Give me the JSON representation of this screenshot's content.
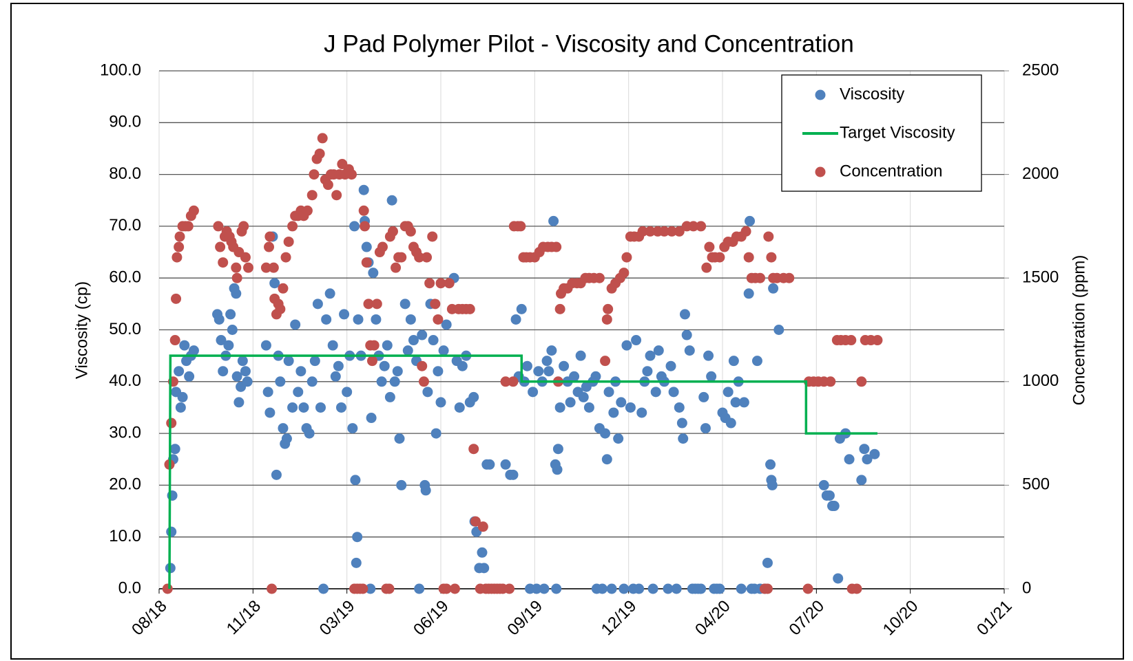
{
  "chart_data": {
    "type": "scatter",
    "title": "J Pad Polymer Pilot - Viscosity and Concentration",
    "y_label": "Viscosity (cp)",
    "y2_label": "Concentration (ppm)",
    "xlim": [
      43325,
      44225
    ],
    "xticks": [
      {
        "value": 43325,
        "label": "08/18"
      },
      {
        "value": 43425,
        "label": "11/18"
      },
      {
        "value": 43525,
        "label": "03/19"
      },
      {
        "value": 43625,
        "label": "06/19"
      },
      {
        "value": 43725,
        "label": "09/19"
      },
      {
        "value": 43825,
        "label": "12/19"
      },
      {
        "value": 43925,
        "label": "04/20"
      },
      {
        "value": 44025,
        "label": "07/20"
      },
      {
        "value": 44125,
        "label": "10/20"
      },
      {
        "value": 44225,
        "label": "01/21"
      }
    ],
    "ylim": [
      0,
      100
    ],
    "yticks": [
      {
        "value": 0,
        "label": "0.0"
      },
      {
        "value": 10,
        "label": "10.0"
      },
      {
        "value": 20,
        "label": "20.0"
      },
      {
        "value": 30,
        "label": "30.0"
      },
      {
        "value": 40,
        "label": "40.0"
      },
      {
        "value": 50,
        "label": "50.0"
      },
      {
        "value": 60,
        "label": "60.0"
      },
      {
        "value": 70,
        "label": "70.0"
      },
      {
        "value": 80,
        "label": "80.0"
      },
      {
        "value": 90,
        "label": "90.0"
      },
      {
        "value": 100,
        "label": "100.0"
      }
    ],
    "y2lim": [
      0,
      2500
    ],
    "y2ticks": [
      0,
      500,
      1000,
      1500,
      2000,
      2500
    ],
    "grid": true,
    "legend": "upper right",
    "series": [
      {
        "name": "Viscosity",
        "type": "scatter",
        "color": "#4f81bd",
        "x": [
          43337,
          43338,
          43339,
          43340,
          43342,
          43343,
          43346,
          43348,
          43350,
          43352,
          43354,
          43357,
          43359,
          43362,
          43387,
          43389,
          43391,
          43393,
          43396,
          43399,
          43401,
          43403,
          43405,
          43407,
          43408,
          43410,
          43412,
          43414,
          43417,
          43419,
          43439,
          43441,
          43443,
          43446,
          43448,
          43450,
          43452,
          43454,
          43457,
          43459,
          43461,
          43463,
          43467,
          43470,
          43473,
          43476,
          43479,
          43482,
          43485,
          43488,
          43491,
          43494,
          43497,
          43500,
          43503,
          43507,
          43510,
          43513,
          43516,
          43519,
          43522,
          43525,
          43528,
          43531,
          43533,
          43534,
          43536,
          43535,
          43537,
          43540,
          43543,
          43544,
          43546,
          43548,
          43550,
          43551,
          43553,
          43556,
          43559,
          43562,
          43565,
          43568,
          43571,
          43573,
          43576,
          43579,
          43581,
          43583,
          43587,
          43590,
          43593,
          43596,
          43599,
          43602,
          43605,
          43608,
          43609,
          43611,
          43614,
          43617,
          43620,
          43622,
          43625,
          43628,
          43631,
          43639,
          43642,
          43645,
          43648,
          43652,
          43656,
          43660,
          43661,
          43663,
          43666,
          43669,
          43671,
          43674,
          43677,
          43694,
          43699,
          43702,
          43705,
          43708,
          43711,
          43714,
          43717,
          43720,
          43723,
          43727,
          43729,
          43733,
          43735,
          43738,
          43740,
          43743,
          43745,
          43747,
          43748,
          43749,
          43750,
          43752,
          43756,
          43760,
          43763,
          43767,
          43771,
          43774,
          43777,
          43780,
          43783,
          43787,
          43790,
          43791,
          43794,
          43797,
          43800,
          43802,
          43804,
          43807,
          43809,
          43811,
          43814,
          43817,
          43820,
          43823,
          43827,
          43830,
          43833,
          43836,
          43839,
          43842,
          43845,
          43848,
          43851,
          43854,
          43857,
          43860,
          43863,
          43867,
          43870,
          43873,
          43876,
          43879,
          43882,
          43883,
          43885,
          43887,
          43890,
          43893,
          43896,
          43899,
          43902,
          43905,
          43907,
          43910,
          43913,
          43916,
          43919,
          43922,
          43925,
          43928,
          43931,
          43934,
          43937,
          43939,
          43942,
          43945,
          43948,
          43953,
          43954,
          43956,
          43959,
          43962,
          43965,
          43970,
          43973,
          43976,
          43977,
          43978,
          43979,
          43985,
          44033,
          44036,
          44039,
          44042,
          44044,
          44048,
          44050,
          44056,
          44060,
          44073,
          44076,
          44079,
          44087
        ],
        "values": [
          4,
          11,
          18,
          25,
          27,
          38,
          42,
          35,
          37,
          47,
          44,
          41,
          45,
          46,
          53,
          52,
          48,
          42,
          45,
          47,
          53,
          50,
          58,
          57,
          41,
          36,
          39,
          44,
          42,
          40,
          47,
          38,
          34,
          68,
          59,
          22,
          45,
          40,
          31,
          28,
          29,
          44,
          35,
          51,
          38,
          42,
          35,
          31,
          30,
          40,
          44,
          55,
          35,
          0,
          52,
          57,
          47,
          41,
          43,
          35,
          53,
          38,
          45,
          31,
          70,
          21,
          10,
          5,
          52,
          45,
          77,
          71,
          66,
          63,
          0,
          33,
          61,
          52,
          45,
          40,
          43,
          47,
          37,
          75,
          40,
          42,
          29,
          20,
          55,
          46,
          52,
          48,
          44,
          0,
          49,
          20,
          19,
          38,
          55,
          48,
          30,
          42,
          36,
          46,
          51,
          60,
          44,
          35,
          43,
          45,
          36,
          37,
          13,
          11,
          4,
          7,
          4,
          24,
          24,
          24,
          22,
          22,
          52,
          41,
          54,
          40,
          43,
          0,
          38,
          0,
          42,
          40,
          0,
          44,
          42,
          46,
          71,
          24,
          0,
          23,
          27,
          35,
          43,
          40,
          36,
          41,
          38,
          45,
          37,
          39,
          35,
          40,
          41,
          0,
          31,
          0,
          30,
          25,
          38,
          0,
          34,
          40,
          29,
          36,
          0,
          47,
          35,
          0,
          48,
          0,
          34,
          40,
          42,
          45,
          0,
          38,
          46,
          41,
          40,
          0,
          43,
          38,
          0,
          35,
          32,
          29,
          53,
          49,
          46,
          0,
          0,
          0,
          0,
          37,
          31,
          45,
          41,
          0,
          0,
          0,
          34,
          33,
          38,
          32,
          44,
          36,
          40,
          0,
          36,
          57,
          71,
          0,
          0,
          44,
          0,
          0,
          5,
          24,
          21,
          20,
          58,
          50,
          20,
          18,
          18,
          16,
          16,
          2,
          29,
          30,
          25,
          21,
          27,
          25,
          26
        ]
      },
      {
        "name": "Target Viscosity",
        "type": "line",
        "color": "#00b050",
        "x": [
          43336,
          43337,
          43711,
          43711,
          44014,
          44014,
          44090
        ],
        "values": [
          0,
          45,
          45,
          40,
          40,
          30,
          30
        ]
      },
      {
        "name": "Concentration",
        "type": "scatter",
        "color": "#c0504d",
        "axis": "y2",
        "x": [
          43334,
          43336,
          43338,
          43340,
          43342,
          43343,
          43344,
          43346,
          43347,
          43350,
          43353,
          43356,
          43359,
          43362,
          43388,
          43390,
          43393,
          43395,
          43397,
          43400,
          43402,
          43404,
          43407,
          43408,
          43410,
          43413,
          43415,
          43417,
          43420,
          43439,
          43442,
          43443,
          43445,
          43447,
          43448,
          43450,
          43452,
          43454,
          43457,
          43460,
          43463,
          43467,
          43470,
          43473,
          43476,
          43479,
          43483,
          43488,
          43490,
          43493,
          43496,
          43499,
          43502,
          43505,
          43508,
          43511,
          43514,
          43517,
          43520,
          43523,
          43527,
          43530,
          43533,
          43536,
          43539,
          43542,
          43543,
          43544,
          43546,
          43548,
          43550,
          43552,
          43554,
          43557,
          43560,
          43563,
          43567,
          43570,
          43571,
          43574,
          43577,
          43580,
          43583,
          43587,
          43590,
          43593,
          43596,
          43599,
          43602,
          43605,
          43607,
          43610,
          43613,
          43616,
          43619,
          43622,
          43625,
          43628,
          43631,
          43634,
          43637,
          43640,
          43644,
          43648,
          43652,
          43656,
          43660,
          43662,
          43667,
          43670,
          43673,
          43676,
          43679,
          43682,
          43685,
          43688,
          43691,
          43694,
          43698,
          43702,
          43703,
          43707,
          43710,
          43713,
          43716,
          43720,
          43725,
          43730,
          43734,
          43739,
          43743,
          43748,
          43750,
          43752,
          43753,
          43756,
          43760,
          43765,
          43770,
          43774,
          43779,
          43783,
          43788,
          43794,
          43800,
          43802,
          43803,
          43807,
          43811,
          43816,
          43820,
          43823,
          43827,
          43831,
          43836,
          43840,
          43848,
          43856,
          43863,
          43871,
          43879,
          43887,
          43894,
          43902,
          43908,
          43911,
          43914,
          43917,
          43922,
          43927,
          43931,
          43936,
          43940,
          43945,
          43950,
          43953,
          43956,
          43960,
          43965,
          43970,
          43973,
          43974,
          43977,
          43979,
          43983,
          43990,
          43996,
          44016,
          44017,
          44022,
          44027,
          44033,
          44040,
          44047,
          44051,
          44056,
          44062,
          44063,
          44068,
          44073,
          44077,
          44083,
          44090
        ],
        "values": [
          0,
          600,
          800,
          1000,
          1200,
          1400,
          1600,
          1650,
          1700,
          1750,
          1750,
          1750,
          1800,
          1825,
          1750,
          1650,
          1575,
          1700,
          1725,
          1700,
          1675,
          1650,
          1550,
          1500,
          1625,
          1725,
          1750,
          1600,
          1550,
          1550,
          1650,
          1700,
          0,
          1550,
          1400,
          1325,
          1375,
          1350,
          1450,
          1600,
          1675,
          1750,
          1800,
          1800,
          1825,
          1800,
          1825,
          1900,
          2000,
          2075,
          2100,
          2175,
          1975,
          1950,
          2000,
          2000,
          1900,
          2000,
          2050,
          2000,
          2025,
          2000,
          0,
          0,
          0,
          0,
          1825,
          1750,
          1575,
          1375,
          1175,
          1100,
          1175,
          1375,
          1625,
          1650,
          0,
          0,
          1700,
          1725,
          1550,
          1600,
          1600,
          1750,
          1750,
          1725,
          1650,
          1625,
          1600,
          1075,
          1000,
          1600,
          1475,
          1700,
          1375,
          1300,
          1475,
          0,
          0,
          1475,
          1350,
          0,
          1350,
          1350,
          1350,
          1350,
          675,
          325,
          0,
          300,
          0,
          0,
          0,
          0,
          0,
          0,
          0,
          1000,
          0,
          1000,
          1750,
          1750,
          1750,
          1600,
          1600,
          1600,
          1600,
          1625,
          1650,
          1650,
          1650,
          1650,
          1000,
          1350,
          1425,
          1450,
          1450,
          1475,
          1475,
          1475,
          1500,
          1500,
          1500,
          1500,
          1100,
          1300,
          1350,
          1450,
          1475,
          1500,
          1525,
          1600,
          1700,
          1700,
          1700,
          1725,
          1725,
          1725,
          1725,
          1725,
          1725,
          1750,
          1750,
          1750,
          1550,
          1650,
          1600,
          1600,
          1600,
          1650,
          1675,
          1675,
          1700,
          1700,
          1725,
          1600,
          1500,
          1500,
          1500,
          0,
          0,
          1700,
          1600,
          1500,
          1500,
          1500,
          1500,
          0,
          1000,
          1000,
          1000,
          1000,
          1000,
          1200,
          1200,
          1200,
          1200,
          0,
          0,
          1000,
          1200,
          1200,
          1200
        ]
      }
    ]
  }
}
